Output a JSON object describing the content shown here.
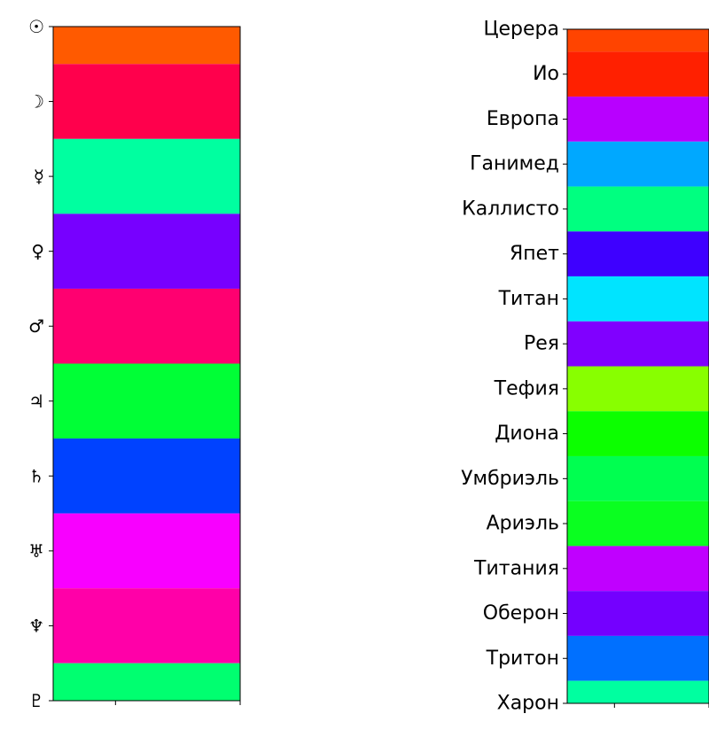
{
  "chart_data": [
    {
      "type": "heatmap",
      "title": "",
      "xlabel": "",
      "ylabel": "",
      "categories": [
        "☉",
        "☽",
        "☿",
        "♀",
        "♂",
        "♃",
        "♄",
        "♅",
        "♆",
        "♇"
      ],
      "colors": [
        "#ff5a00",
        "#ff004c",
        "#00ffa0",
        "#7700ff",
        "#ff0070",
        "#00ff36",
        "#0042ff",
        "#f800ff",
        "#ff00a8",
        "#00ff70"
      ],
      "row_ranges": [
        [
          0,
          0.5
        ],
        [
          0.5,
          1.5
        ],
        [
          1.5,
          2.5
        ],
        [
          2.5,
          3.5
        ],
        [
          3.5,
          4.5
        ],
        [
          4.5,
          5.5
        ],
        [
          5.5,
          6.5
        ],
        [
          6.5,
          7.5
        ],
        [
          7.5,
          8.5
        ],
        [
          8.5,
          9
        ]
      ],
      "ylim": [
        0,
        9
      ],
      "x_ticks": 2,
      "grid": false
    },
    {
      "type": "heatmap",
      "title": "",
      "xlabel": "",
      "ylabel": "",
      "categories": [
        "Церера",
        "Ио",
        "Европа",
        "Ганимед",
        "Каллисто",
        "Япет",
        "Титан",
        "Рея",
        "Тефия",
        "Диона",
        "Умбриэль",
        "Ариэль",
        "Титания",
        "Оберон",
        "Тритон",
        "Харон"
      ],
      "colors": [
        "#ff4400",
        "#ff2000",
        "#b800ff",
        "#00a8ff",
        "#00ff80",
        "#3e00ff",
        "#00e4ff",
        "#8000ff",
        "#88ff00",
        "#0cff00",
        "#00ff50",
        "#0aff20",
        "#c000ff",
        "#7400ff",
        "#0070ff",
        "#00ffa0"
      ],
      "row_ranges": [
        [
          0,
          0.5
        ],
        [
          0.5,
          1.5
        ],
        [
          1.5,
          2.5
        ],
        [
          2.5,
          3.5
        ],
        [
          3.5,
          4.5
        ],
        [
          4.5,
          5.5
        ],
        [
          5.5,
          6.5
        ],
        [
          6.5,
          7.5
        ],
        [
          7.5,
          8.5
        ],
        [
          8.5,
          9.5
        ],
        [
          9.5,
          10.5
        ],
        [
          10.5,
          11.5
        ],
        [
          11.5,
          12.5
        ],
        [
          12.5,
          13.5
        ],
        [
          13.5,
          14.5
        ],
        [
          14.5,
          15
        ]
      ],
      "ylim": [
        0,
        15
      ],
      "x_ticks": 2,
      "grid": false
    }
  ]
}
